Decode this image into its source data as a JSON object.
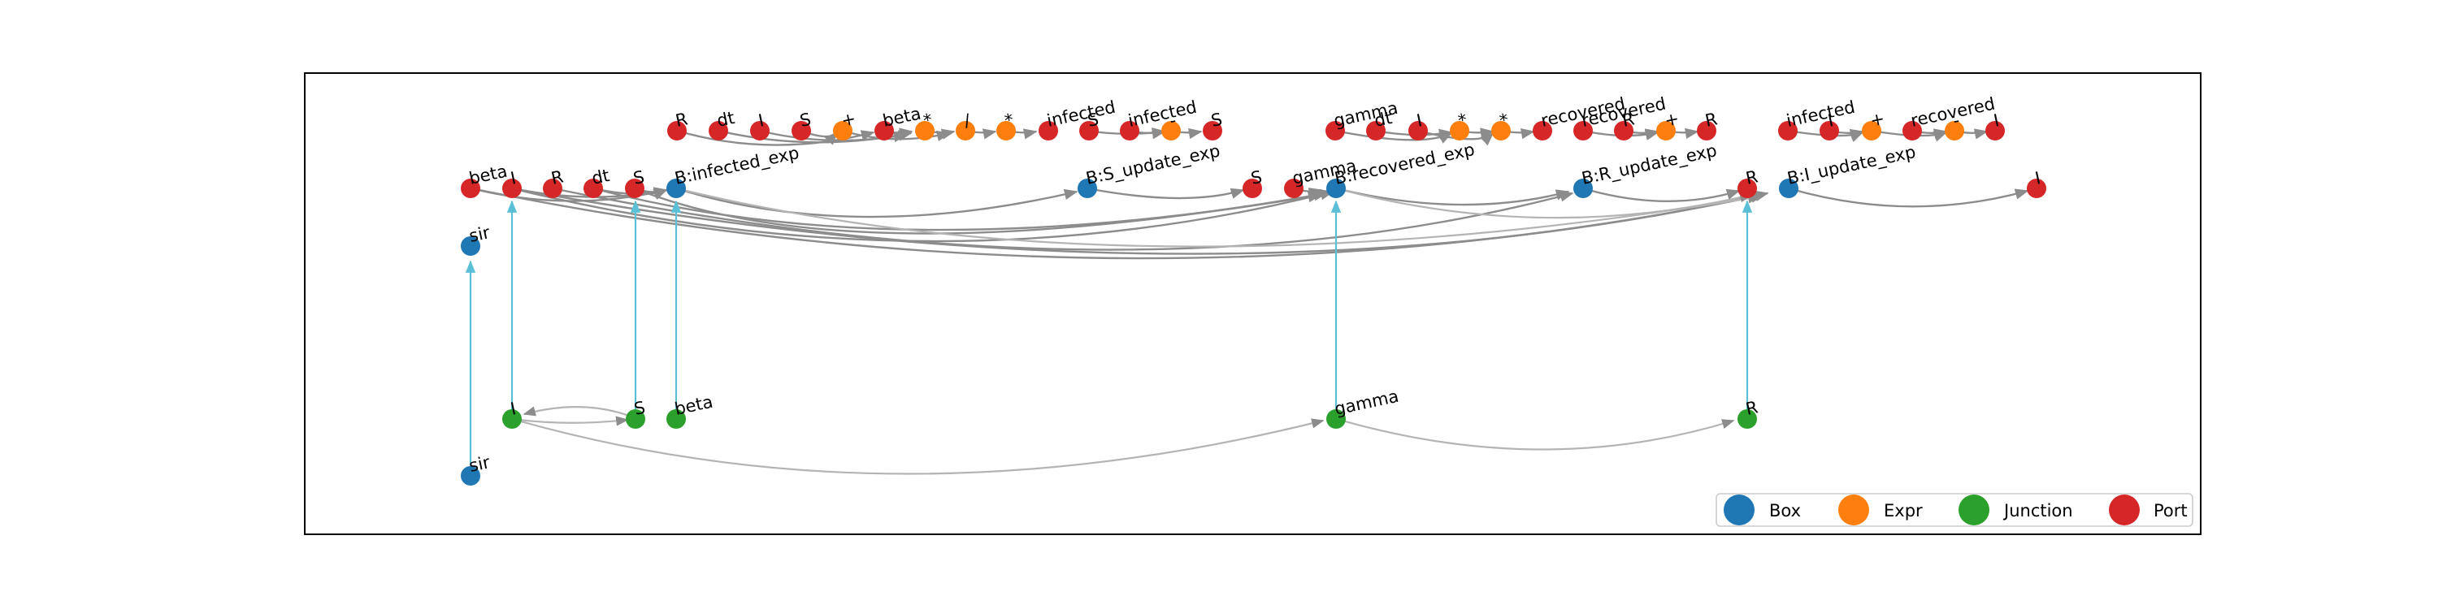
{
  "colors": {
    "box": "#1f77b4",
    "expr": "#ff7f0e",
    "junction": "#2ca02c",
    "port": "#d62728",
    "edge": "#8c8c8c",
    "wire": "#5bc0d6"
  },
  "legend": [
    {
      "key": "box",
      "label": "Box"
    },
    {
      "key": "expr",
      "label": "Expr"
    },
    {
      "key": "junction",
      "label": "Junction"
    },
    {
      "key": "port",
      "label": "Port"
    }
  ],
  "nodes": [
    {
      "id": "t1",
      "type": "port",
      "label": "R"
    },
    {
      "id": "t2",
      "type": "port",
      "label": "dt"
    },
    {
      "id": "t3",
      "type": "port",
      "label": "I"
    },
    {
      "id": "t4",
      "type": "port",
      "label": "S"
    },
    {
      "id": "t5",
      "type": "expr",
      "label": "+"
    },
    {
      "id": "t6",
      "type": "port",
      "label": "beta"
    },
    {
      "id": "t7",
      "type": "expr",
      "label": "*"
    },
    {
      "id": "t8",
      "type": "expr",
      "label": "/"
    },
    {
      "id": "t9",
      "type": "expr",
      "label": "*"
    },
    {
      "id": "t10",
      "type": "port",
      "label": "infected"
    },
    {
      "id": "t11",
      "type": "port",
      "label": "S"
    },
    {
      "id": "t12",
      "type": "port",
      "label": "infected"
    },
    {
      "id": "t13",
      "type": "expr",
      "label": "-"
    },
    {
      "id": "t14",
      "type": "port",
      "label": "S"
    },
    {
      "id": "t15",
      "type": "port",
      "label": "gamma"
    },
    {
      "id": "t16",
      "type": "port",
      "label": "dt"
    },
    {
      "id": "t17",
      "type": "port",
      "label": "I"
    },
    {
      "id": "t18",
      "type": "expr",
      "label": "*"
    },
    {
      "id": "t19",
      "type": "expr",
      "label": "*"
    },
    {
      "id": "t20",
      "type": "port",
      "label": "recovered"
    },
    {
      "id": "t21",
      "type": "port",
      "label": "recovered"
    },
    {
      "id": "t22",
      "type": "port",
      "label": "R"
    },
    {
      "id": "t23",
      "type": "expr",
      "label": "+"
    },
    {
      "id": "t24",
      "type": "port",
      "label": "R"
    },
    {
      "id": "t25",
      "type": "port",
      "label": "infected"
    },
    {
      "id": "t26",
      "type": "port",
      "label": "I"
    },
    {
      "id": "t27",
      "type": "expr",
      "label": "+"
    },
    {
      "id": "t28",
      "type": "port",
      "label": "recovered"
    },
    {
      "id": "t29",
      "type": "expr",
      "label": "-"
    },
    {
      "id": "t30",
      "type": "port",
      "label": "I"
    },
    {
      "id": "m1",
      "type": "port",
      "label": "beta"
    },
    {
      "id": "m2",
      "type": "port",
      "label": "I"
    },
    {
      "id": "m3",
      "type": "port",
      "label": "R"
    },
    {
      "id": "m4",
      "type": "port",
      "label": "dt"
    },
    {
      "id": "m5",
      "type": "port",
      "label": "S"
    },
    {
      "id": "b1",
      "type": "box",
      "label": "B:infected_exp"
    },
    {
      "id": "b2",
      "type": "box",
      "label": "B:S_update_exp"
    },
    {
      "id": "m6",
      "type": "port",
      "label": "S"
    },
    {
      "id": "m7",
      "type": "port",
      "label": "gamma"
    },
    {
      "id": "b3",
      "type": "box",
      "label": "B:recovered_exp"
    },
    {
      "id": "b4",
      "type": "box",
      "label": "B:R_update_exp"
    },
    {
      "id": "m8",
      "type": "port",
      "label": "R"
    },
    {
      "id": "b5",
      "type": "box",
      "label": "B:I_update_exp"
    },
    {
      "id": "m9",
      "type": "port",
      "label": "I"
    },
    {
      "id": "sir1",
      "type": "box",
      "label": "sir"
    },
    {
      "id": "j1",
      "type": "junction",
      "label": "I"
    },
    {
      "id": "j2",
      "type": "junction",
      "label": "S"
    },
    {
      "id": "j3",
      "type": "junction",
      "label": "beta"
    },
    {
      "id": "j4",
      "type": "junction",
      "label": "gamma"
    },
    {
      "id": "j5",
      "type": "junction",
      "label": "R"
    },
    {
      "id": "sir2",
      "type": "box",
      "label": "sir"
    }
  ]
}
